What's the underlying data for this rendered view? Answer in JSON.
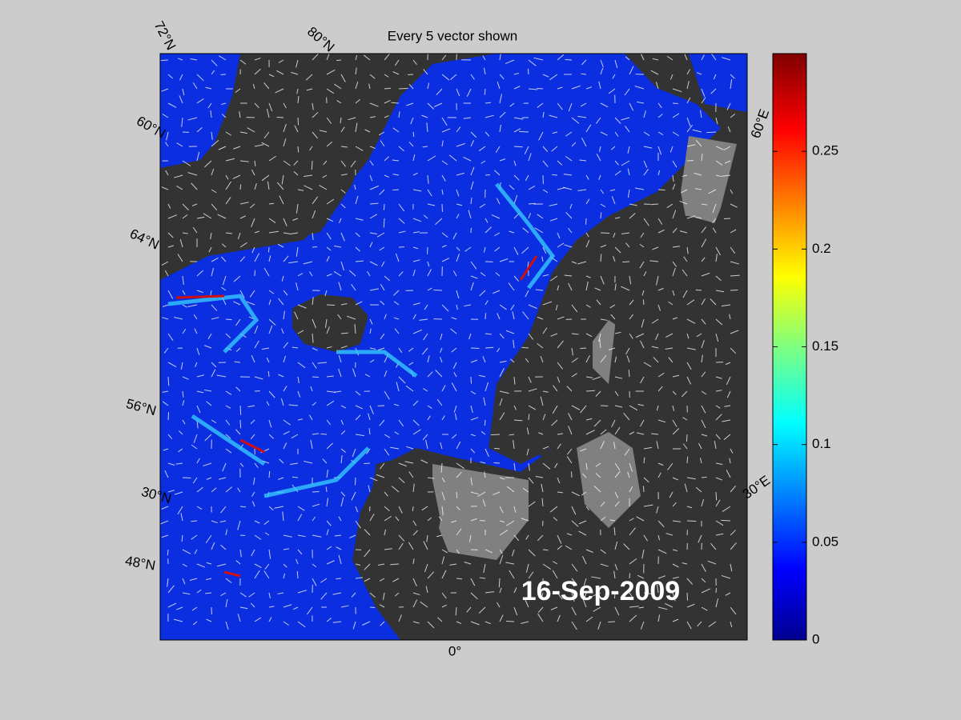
{
  "title": "Every 5 vector shown",
  "date_label": "16-Sep-2009",
  "map_labels": [
    "72°N",
    "80°N",
    "60°N",
    "64°N",
    "56°N",
    "30°N",
    "48°N",
    "0°",
    "60°E",
    "30°E"
  ],
  "colorbar": {
    "lim": [
      0,
      0.3
    ],
    "ticks": [
      0,
      0.05,
      0.1,
      0.15,
      0.2,
      0.25
    ]
  }
}
